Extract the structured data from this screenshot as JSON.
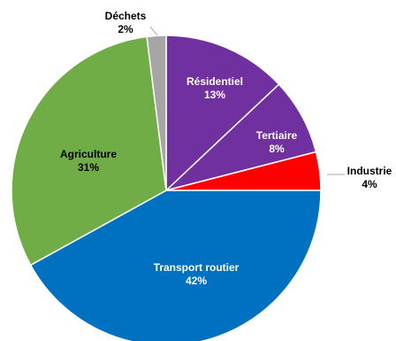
{
  "chart_data": {
    "type": "pie",
    "title": "",
    "slices": [
      {
        "label": "Résidentiel",
        "value": 13,
        "display": "13%",
        "color": "#7030A0"
      },
      {
        "label": "Tertiaire",
        "value": 8,
        "display": "8%",
        "color": "#7030A0"
      },
      {
        "label": "Industrie",
        "value": 4,
        "display": "4%",
        "color": "#FF0000"
      },
      {
        "label": "Transport routier",
        "value": 42,
        "display": "42%",
        "color": "#0070C0"
      },
      {
        "label": "Agriculture",
        "value": 31,
        "display": "31%",
        "color": "#70AD47"
      },
      {
        "label": "Déchets",
        "value": 2,
        "display": "2%",
        "color": "#A5A5A5"
      }
    ]
  }
}
